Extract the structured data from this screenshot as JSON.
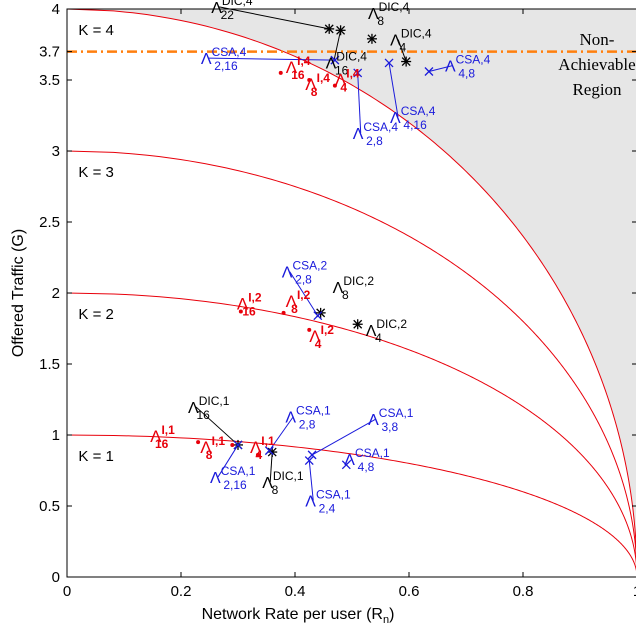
{
  "chart_data": {
    "type": "scatter",
    "xlabel": "Network Rate per user (R_n)",
    "ylabel": "Offered Traffic (G)",
    "xlim": [
      0,
      1
    ],
    "ylim": [
      0,
      4
    ],
    "x_ticks": [
      "0",
      "0.2",
      "0.4",
      "0.6",
      "0.8",
      "1"
    ],
    "y_ticks": [
      {
        "value": 0,
        "label": "0"
      },
      {
        "value": 0.5,
        "label": "0.5"
      },
      {
        "value": 1,
        "label": "1"
      },
      {
        "value": 1.5,
        "label": "1.5"
      },
      {
        "value": 2,
        "label": "2"
      },
      {
        "value": 2.5,
        "label": "2.5"
      },
      {
        "value": 3,
        "label": "3"
      },
      {
        "value": 3.5,
        "label": "3.5"
      },
      {
        "value": 3.7,
        "label": "3.7"
      },
      {
        "value": 4,
        "label": "4"
      }
    ],
    "grid": false,
    "colors": {
      "dic": "#000000",
      "csa": "#1a1adb",
      "idealized": "#e8000b",
      "boundary": "#e8000b",
      "threshold": "#ff7f0e",
      "region_fill": "#e6e6e6"
    },
    "curves": [
      {
        "label": "K = 1",
        "K": 1
      },
      {
        "label": "K = 2",
        "K": 2
      },
      {
        "label": "K = 3",
        "K": 3
      },
      {
        "label": "K = 4",
        "K": 4
      }
    ],
    "threshold_line": {
      "y": 3.7
    },
    "non_achievable_region": {
      "label_lines": [
        "Non-",
        "Achievable",
        "Region"
      ]
    },
    "series": [
      {
        "scheme": "DIC",
        "marker": "asterisk",
        "color": "#000000",
        "points": [
          {
            "x": 0.3,
            "y": 0.93,
            "base": "Λ",
            "sup": "DIC,1",
            "sub": "16"
          },
          {
            "x": 0.36,
            "y": 0.88,
            "base": "Λ",
            "sup": "DIC,1",
            "sub": "8"
          },
          {
            "x": 0.445,
            "y": 1.86,
            "base": "Λ",
            "sup": "DIC,2",
            "sub": "8"
          },
          {
            "x": 0.51,
            "y": 1.78,
            "base": "Λ",
            "sup": "DIC,2",
            "sub": "4"
          },
          {
            "x": 0.46,
            "y": 3.86,
            "base": "Λ",
            "sup": "DIC,4",
            "sub": "22"
          },
          {
            "x": 0.48,
            "y": 3.85,
            "base": "Λ",
            "sup": "DIC,4",
            "sub": "16"
          },
          {
            "x": 0.535,
            "y": 3.79,
            "base": "Λ",
            "sup": "DIC,4",
            "sub": "8"
          },
          {
            "x": 0.595,
            "y": 3.63,
            "base": "Λ",
            "sup": "DIC,4",
            "sub": "4"
          }
        ]
      },
      {
        "scheme": "CSA",
        "marker": "x",
        "color": "#1a1adb",
        "points": [
          {
            "x": 0.3,
            "y": 0.93,
            "base": "Λ",
            "sup": "CSA,1",
            "sub": "2,16"
          },
          {
            "x": 0.355,
            "y": 0.89,
            "base": "Λ",
            "sup": "CSA,1",
            "sub": "2,8"
          },
          {
            "x": 0.425,
            "y": 0.82,
            "base": "Λ",
            "sup": "CSA,1",
            "sub": "2,4"
          },
          {
            "x": 0.43,
            "y": 0.86,
            "base": "Λ",
            "sup": "CSA,1",
            "sub": "3,8"
          },
          {
            "x": 0.49,
            "y": 0.79,
            "base": "Λ",
            "sup": "CSA,1",
            "sub": "4,8"
          },
          {
            "x": 0.44,
            "y": 1.84,
            "base": "Λ",
            "sup": "CSA,2",
            "sub": "2,8"
          },
          {
            "x": 0.47,
            "y": 3.64,
            "base": "Λ",
            "sup": "CSA,4",
            "sub": "2,16"
          },
          {
            "x": 0.51,
            "y": 3.55,
            "base": "Λ",
            "sup": "CSA,4",
            "sub": "2,8"
          },
          {
            "x": 0.565,
            "y": 3.62,
            "base": "Λ",
            "sup": "CSA,4",
            "sub": "4,16"
          },
          {
            "x": 0.635,
            "y": 3.56,
            "base": "Λ",
            "sup": "CSA,4",
            "sub": "4,8"
          }
        ]
      },
      {
        "scheme": "Idealized",
        "marker": "dot",
        "color": "#e8000b",
        "points": [
          {
            "x": 0.23,
            "y": 0.95,
            "base": "Λ",
            "sup": "I,1",
            "sub": "16"
          },
          {
            "x": 0.29,
            "y": 0.93,
            "base": "Λ",
            "sup": "I,1",
            "sub": "8"
          },
          {
            "x": 0.335,
            "y": 0.86,
            "base": "Λ",
            "sup": "I,1",
            "sub": "4"
          },
          {
            "x": 0.305,
            "y": 1.87,
            "base": "Λ",
            "sup": "I,2",
            "sub": "16"
          },
          {
            "x": 0.38,
            "y": 1.86,
            "base": "Λ",
            "sup": "I,2",
            "sub": "8"
          },
          {
            "x": 0.425,
            "y": 1.74,
            "base": "Λ",
            "sup": "I,2",
            "sub": "4"
          },
          {
            "x": 0.375,
            "y": 3.55,
            "base": "Λ",
            "sup": "I,4",
            "sub": "16"
          },
          {
            "x": 0.425,
            "y": 3.5,
            "base": "Λ",
            "sup": "I,4",
            "sub": "8"
          },
          {
            "x": 0.47,
            "y": 3.46,
            "base": "Λ",
            "sup": "I,4",
            "sub": "4"
          }
        ]
      }
    ]
  }
}
